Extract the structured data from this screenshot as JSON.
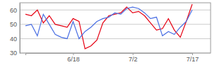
{
  "chart_data": {
    "type": "line",
    "categories": [
      null,
      null,
      null,
      null,
      null,
      null,
      null,
      null,
      "6/18",
      null,
      null,
      null,
      null,
      null,
      null,
      null,
      null,
      null,
      "7/2",
      null,
      null,
      null,
      null,
      null,
      null,
      null,
      null,
      null,
      "7/17"
    ],
    "series": [
      {
        "color": "#e60012",
        "values": [
          57,
          56,
          60,
          51,
          56,
          50,
          49,
          48,
          54,
          52,
          33,
          35,
          39,
          51,
          56,
          57,
          58,
          62,
          58,
          59,
          56,
          51,
          46,
          47,
          54,
          46,
          41,
          52,
          64
        ]
      },
      {
        "color": "#4a6fe3",
        "values": [
          49,
          50,
          42,
          57,
          50,
          43,
          41,
          40,
          52,
          40,
          45,
          48,
          52,
          54,
          55,
          58,
          57,
          61,
          62,
          61,
          58,
          54,
          55,
          42,
          45,
          43,
          48,
          52,
          60
        ]
      }
    ],
    "ylim": [
      30,
      65
    ],
    "yticks": [
      30,
      40,
      50,
      60
    ],
    "grid": true
  }
}
